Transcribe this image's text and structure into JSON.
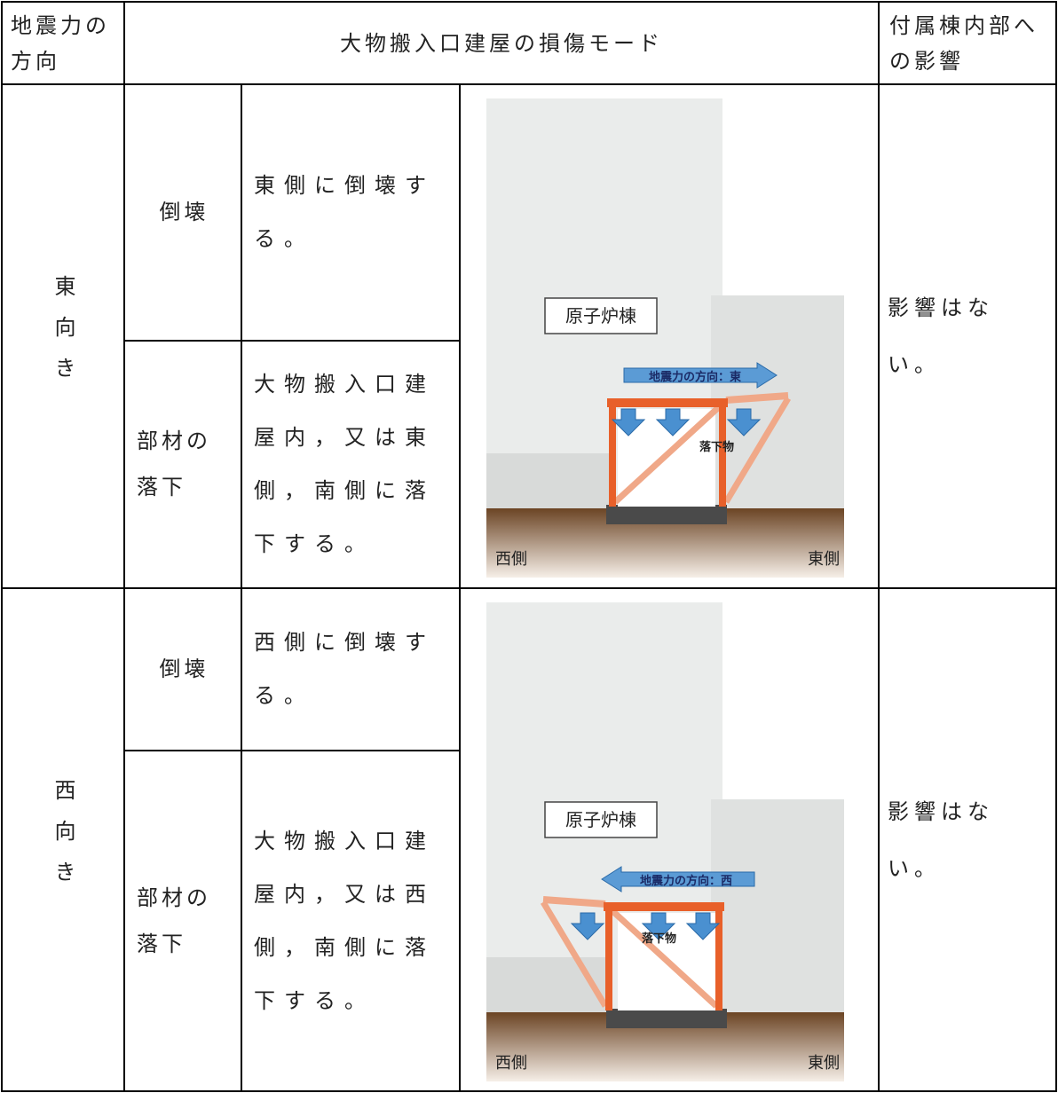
{
  "table": {
    "header": [
      "地震力の方向",
      "大物搬入口建屋の損傷モード",
      "付属棟内部への影響"
    ],
    "groups": [
      {
        "direction": "東向き",
        "modes": [
          {
            "mode": "倒壊",
            "description": "東側に倒壊する。"
          },
          {
            "mode": "部材の落下",
            "description": "大物搬入口建屋内，又は東側，南側に落下する。"
          }
        ],
        "impact": "影響はない。",
        "diagram": {
          "building": "原子炉棟",
          "force": "地震力の方向：東",
          "falling": "落下物",
          "west": "西側",
          "east": "東側"
        }
      },
      {
        "direction": "西向き",
        "modes": [
          {
            "mode": "倒壊",
            "description": "西側に倒壊する。"
          },
          {
            "mode": "部材の落下",
            "description": "大物搬入口建屋内，又は西側，南側に落下する。"
          }
        ],
        "impact": "影響はない。",
        "diagram": {
          "building": "原子炉棟",
          "force": "地震力の方向：西",
          "falling": "落下物",
          "west": "西側",
          "east": "東側"
        }
      }
    ]
  }
}
